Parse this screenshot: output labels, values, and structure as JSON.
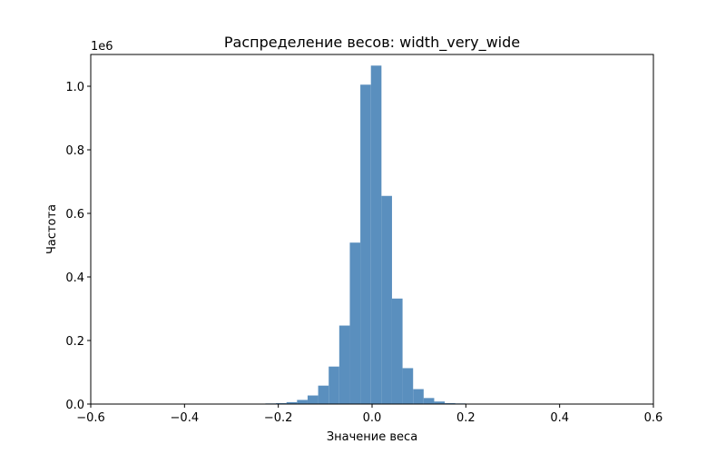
{
  "chart_data": {
    "type": "bar",
    "title": "Распределение весов: width_very_wide",
    "xlabel": "Значение веса",
    "ylabel": "Частота",
    "y_multiplier_label": "1e6",
    "xlim": [
      -0.6,
      0.6
    ],
    "ylim": [
      0,
      1.1
    ],
    "xticks": [
      -0.6,
      -0.4,
      -0.2,
      0.0,
      0.2,
      0.4,
      0.6
    ],
    "xtick_labels": [
      "−0.6",
      "−0.4",
      "−0.2",
      "0.0",
      "0.2",
      "0.4",
      "0.6"
    ],
    "yticks": [
      0.0,
      0.2,
      0.4,
      0.6,
      0.8,
      1.0
    ],
    "ytick_labels": [
      "0.0",
      "0.2",
      "0.4",
      "0.6",
      "0.8",
      "1.0"
    ],
    "bar_color": "#5a8fbe",
    "bin_width": 0.0225,
    "bins": [
      {
        "x_start": -0.2275,
        "value": 0.002
      },
      {
        "x_start": -0.205,
        "value": 0.003
      },
      {
        "x_start": -0.1825,
        "value": 0.006
      },
      {
        "x_start": -0.16,
        "value": 0.013
      },
      {
        "x_start": -0.1375,
        "value": 0.027
      },
      {
        "x_start": -0.115,
        "value": 0.058
      },
      {
        "x_start": -0.0925,
        "value": 0.118
      },
      {
        "x_start": -0.07,
        "value": 0.247
      },
      {
        "x_start": -0.0475,
        "value": 0.508
      },
      {
        "x_start": -0.025,
        "value": 1.005
      },
      {
        "x_start": -0.0025,
        "value": 1.065
      },
      {
        "x_start": 0.02,
        "value": 0.655
      },
      {
        "x_start": 0.0425,
        "value": 0.332
      },
      {
        "x_start": 0.065,
        "value": 0.113
      },
      {
        "x_start": 0.0875,
        "value": 0.047
      },
      {
        "x_start": 0.11,
        "value": 0.019
      },
      {
        "x_start": 0.1325,
        "value": 0.008
      },
      {
        "x_start": 0.155,
        "value": 0.003
      },
      {
        "x_start": 0.1775,
        "value": 0.002
      }
    ]
  }
}
